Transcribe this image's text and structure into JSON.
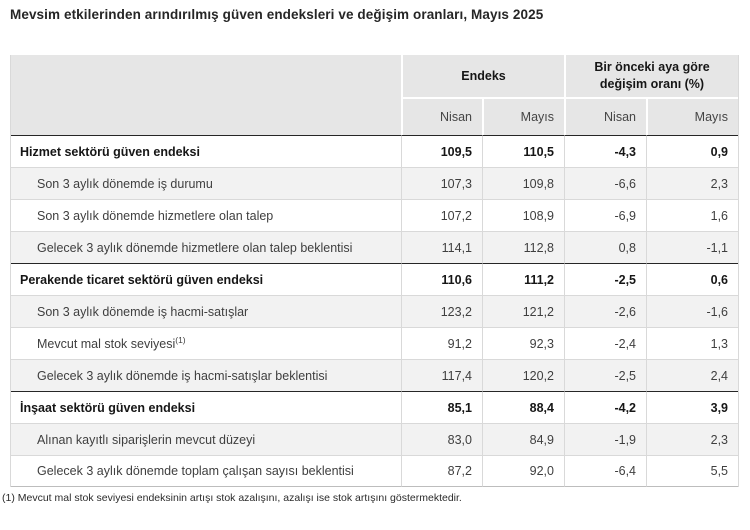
{
  "title": "Mevsim etkilerinden arındırılmış güven endeksleri ve değişim oranları, Mayıs 2025",
  "table": {
    "col_groups": [
      {
        "label": "Endeks"
      },
      {
        "label": "Bir önceki aya göre değişim oranı (%)"
      }
    ],
    "sub_headers": [
      "Nisan",
      "Mayıs",
      "Nisan",
      "Mayıs"
    ],
    "rows": [
      {
        "label": "Hizmet sektörü güven endeksi",
        "bold": true,
        "values": [
          "109,5",
          "110,5",
          "-4,3",
          "0,9"
        ]
      },
      {
        "label": "Son 3 aylık dönemde iş durumu",
        "bold": false,
        "values": [
          "107,3",
          "109,8",
          "-6,6",
          "2,3"
        ]
      },
      {
        "label": "Son 3 aylık dönemde hizmetlere olan talep",
        "bold": false,
        "values": [
          "107,2",
          "108,9",
          "-6,9",
          "1,6"
        ]
      },
      {
        "label": "Gelecek 3 aylık dönemde hizmetlere olan talep beklentisi",
        "bold": false,
        "values": [
          "114,1",
          "112,8",
          "0,8",
          "-1,1"
        ]
      },
      {
        "label": "Perakende ticaret sektörü güven endeksi",
        "bold": true,
        "values": [
          "110,6",
          "111,2",
          "-2,5",
          "0,6"
        ]
      },
      {
        "label": "Son 3 aylık dönemde iş hacmi-satışlar",
        "bold": false,
        "values": [
          "123,2",
          "121,2",
          "-2,6",
          "-1,6"
        ]
      },
      {
        "label": "Mevcut mal stok seviyesi",
        "sup": "(1)",
        "bold": false,
        "values": [
          "91,2",
          "92,3",
          "-2,4",
          "1,3"
        ]
      },
      {
        "label": "Gelecek 3 aylık dönemde iş hacmi-satışlar beklentisi",
        "bold": false,
        "values": [
          "117,4",
          "120,2",
          "-2,5",
          "2,4"
        ]
      },
      {
        "label": "İnşaat sektörü güven endeksi",
        "bold": true,
        "values": [
          "85,1",
          "88,4",
          "-4,2",
          "3,9"
        ]
      },
      {
        "label": "Alınan kayıtlı siparişlerin mevcut düzeyi",
        "bold": false,
        "values": [
          "83,0",
          "84,9",
          "-1,9",
          "2,3"
        ]
      },
      {
        "label": "Gelecek 3 aylık dönemde toplam çalışan sayısı beklentisi",
        "bold": false,
        "values": [
          "87,2",
          "92,0",
          "-6,4",
          "5,5"
        ]
      }
    ]
  },
  "footnote": "(1) Mevcut mal stok seviyesi endeksinin artışı stok azalışını, azalışı ise stok artışını göstermektedir.",
  "colors": {
    "title_text": "#262626",
    "header_bg": "#e6e6e6",
    "stripe_bg": "#f2f2f2",
    "border_light": "#d9d9d9",
    "border_dark": "#262626",
    "border_bottom": "#bdbdbd",
    "body_text": "#3f3f3f",
    "subheader_text": "#454545",
    "section_text": "#161616",
    "footnote_text": "#2b2b2b"
  }
}
